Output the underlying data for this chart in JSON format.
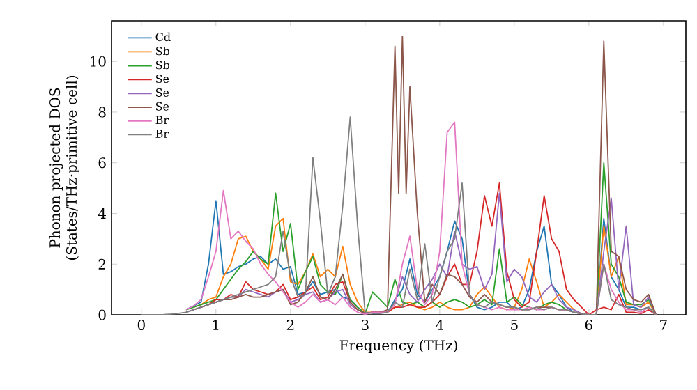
{
  "chart_data": {
    "type": "line",
    "xlabel": "Frequency (THz)",
    "ylabel": "Phonon projected DOS (States/THz·primitive cell)",
    "xlim": [
      -0.4,
      7.3
    ],
    "ylim": [
      0,
      11.6
    ],
    "xticks": [
      0,
      1,
      2,
      3,
      4,
      5,
      6,
      7
    ],
    "yticks": [
      0,
      2,
      4,
      6,
      8,
      10
    ],
    "legend": "top left",
    "x": [
      0,
      0.1,
      0.2,
      0.3,
      0.4,
      0.5,
      0.6,
      0.7,
      0.8,
      0.9,
      1.0,
      1.1,
      1.2,
      1.3,
      1.4,
      1.5,
      1.6,
      1.7,
      1.8,
      1.9,
      2.0,
      2.1,
      2.2,
      2.3,
      2.4,
      2.5,
      2.6,
      2.7,
      2.8,
      2.9,
      3.0,
      3.1,
      3.2,
      3.3,
      3.4,
      3.5,
      3.6,
      3.7,
      3.8,
      3.9,
      4.0,
      4.1,
      4.2,
      4.3,
      4.4,
      4.5,
      4.6,
      4.7,
      4.8,
      4.9,
      5.0,
      5.1,
      5.2,
      5.3,
      5.4,
      5.5,
      5.6,
      5.7,
      5.8,
      5.9,
      6.0,
      6.1,
      6.2,
      6.3,
      6.4,
      6.5,
      6.6,
      6.7,
      6.8,
      6.9
    ],
    "series": [
      {
        "name": "Cd",
        "color": "#1f77b4",
        "values": [
          null,
          null,
          null,
          null,
          null,
          null,
          0.2,
          0.35,
          0.5,
          2.0,
          4.5,
          1.6,
          1.7,
          1.9,
          2.0,
          2.2,
          2.3,
          2.0,
          2.2,
          1.8,
          1.9,
          0.8,
          0.9,
          1.3,
          0.8,
          0.9,
          1.0,
          0.7,
          0.6,
          0.3,
          0.05,
          0.1,
          0.1,
          0.1,
          0.6,
          1.0,
          2.2,
          0.8,
          0.5,
          1.0,
          1.5,
          2.5,
          3.7,
          3.0,
          0.8,
          0.3,
          0.2,
          0.3,
          0.5,
          0.5,
          0.2,
          0.3,
          1.0,
          2.5,
          3.5,
          1.2,
          0.8,
          0.3,
          0.1,
          0.05,
          0,
          0,
          3.8,
          1.5,
          1.0,
          0.3,
          0.3,
          0.2,
          0.3,
          0
        ]
      },
      {
        "name": "Sb",
        "color": "#ff7f0e",
        "values": [
          null,
          null,
          null,
          null,
          null,
          null,
          null,
          0.3,
          0.4,
          0.6,
          0.7,
          1.5,
          2.0,
          3.0,
          3.1,
          2.5,
          2.2,
          1.8,
          3.5,
          3.8,
          1.3,
          1.2,
          1.7,
          2.4,
          1.5,
          1.8,
          1.5,
          2.7,
          1.2,
          0.5,
          0.1,
          0.1,
          0.1,
          0.1,
          0.3,
          0.4,
          0.5,
          0.3,
          0.2,
          0.3,
          0.5,
          0.3,
          0.2,
          0.2,
          0.3,
          0.8,
          1.1,
          0.7,
          0.3,
          0.2,
          0.3,
          1.0,
          2.2,
          1.3,
          0.3,
          0.5,
          0.8,
          0.5,
          0.2,
          0.05,
          0,
          0,
          3.5,
          1.5,
          2.3,
          0.4,
          0.4,
          0.3,
          0.5,
          0
        ]
      },
      {
        "name": "Sb",
        "color": "#2ca02c",
        "values": [
          null,
          null,
          null,
          null,
          null,
          null,
          0.2,
          0.3,
          0.4,
          0.5,
          0.6,
          1.0,
          1.4,
          1.8,
          2.1,
          2.5,
          2.2,
          2.0,
          4.8,
          2.5,
          3.6,
          1.0,
          1.7,
          2.3,
          1.2,
          0.9,
          0.8,
          1.6,
          0.6,
          0.3,
          0.05,
          0.9,
          0.6,
          0.3,
          1.4,
          0.5,
          0.4,
          0.5,
          0.3,
          0.5,
          0.3,
          0.5,
          0.6,
          0.5,
          0.3,
          0.4,
          0.6,
          0.4,
          2.6,
          0.5,
          0.7,
          0.4,
          0.3,
          0.2,
          0.4,
          0.5,
          0.4,
          0.2,
          0.1,
          0.05,
          0,
          0,
          6.0,
          2.0,
          1.5,
          0.5,
          0.4,
          0.4,
          0.6,
          0
        ]
      },
      {
        "name": "Se",
        "color": "#d62728",
        "values": [
          null,
          null,
          null,
          null,
          null,
          null,
          null,
          null,
          0.3,
          0.4,
          0.6,
          0.6,
          0.8,
          0.7,
          1.3,
          1.0,
          0.9,
          0.8,
          0.9,
          1.2,
          0.6,
          0.7,
          0.9,
          1.1,
          0.6,
          0.7,
          1.2,
          1.3,
          0.5,
          0.2,
          0.05,
          0.1,
          0.1,
          0.1,
          0.3,
          0.3,
          0.4,
          0.3,
          0.3,
          0.5,
          0.8,
          1.5,
          2.0,
          1.2,
          1.2,
          2.5,
          4.7,
          3.5,
          5.2,
          1.7,
          0.6,
          0.3,
          0.5,
          2.5,
          4.7,
          3.0,
          2.5,
          1.0,
          0.6,
          0.3,
          0,
          0.2,
          0.3,
          0.2,
          0.8,
          0.1,
          0.1,
          0.05,
          0.2,
          0
        ]
      },
      {
        "name": "Se",
        "color": "#9467bd",
        "values": [
          null,
          null,
          null,
          null,
          null,
          null,
          0.1,
          0.2,
          0.3,
          0.4,
          0.5,
          0.6,
          0.7,
          0.7,
          1.0,
          0.9,
          0.8,
          0.7,
          0.9,
          1.0,
          0.5,
          0.6,
          0.8,
          0.9,
          0.5,
          0.6,
          0.9,
          1.0,
          0.4,
          0.2,
          0.05,
          0.1,
          0.1,
          0.1,
          0.5,
          1.5,
          0.8,
          0.5,
          1.0,
          1.4,
          2.0,
          1.5,
          3.3,
          2.0,
          1.8,
          1.9,
          1.0,
          1.6,
          4.8,
          1.3,
          1.8,
          1.5,
          0.7,
          0.5,
          0.9,
          1.2,
          0.6,
          0.3,
          0.2,
          0.05,
          0,
          0,
          2.5,
          4.6,
          1.0,
          3.5,
          0.4,
          0.3,
          0.7,
          0
        ]
      },
      {
        "name": "Se",
        "color": "#8c564b",
        "x": [
          0.6,
          0.7,
          0.8,
          0.9,
          1.0,
          1.1,
          1.2,
          1.3,
          1.4,
          1.5,
          1.6,
          1.7,
          1.8,
          1.9,
          2.0,
          2.1,
          2.2,
          2.3,
          2.4,
          2.5,
          2.6,
          2.7,
          2.8,
          2.9,
          3.0,
          3.1,
          3.2,
          3.3,
          3.4,
          3.45,
          3.5,
          3.55,
          3.6,
          3.7,
          3.8,
          3.9,
          4.0,
          4.1,
          4.2,
          4.3,
          4.4,
          4.5,
          4.6,
          4.7,
          4.8,
          4.9,
          5.0,
          5.1,
          5.2,
          5.3,
          5.4,
          5.5,
          5.6,
          5.7,
          5.8,
          5.9,
          6.0,
          6.1,
          6.2,
          6.3,
          6.4,
          6.5,
          6.6,
          6.7,
          6.8,
          6.9
        ],
        "values": [
          0.1,
          0.2,
          0.3,
          0.4,
          0.5,
          0.6,
          0.6,
          0.7,
          0.8,
          0.7,
          0.7,
          0.8,
          0.9,
          1.0,
          0.4,
          0.5,
          0.9,
          1.5,
          0.7,
          0.6,
          1.0,
          1.6,
          0.5,
          0.2,
          0.05,
          0.1,
          0.1,
          0.2,
          10.6,
          4.8,
          11.0,
          4.8,
          9.0,
          4.0,
          0.5,
          1.2,
          0.8,
          1.6,
          1.5,
          1.2,
          0.7,
          0.5,
          0.8,
          0.5,
          0.4,
          0.3,
          0.3,
          0.2,
          0.2,
          0.3,
          0.3,
          0.3,
          0.2,
          0.2,
          0.1,
          0.05,
          0,
          0,
          10.8,
          2.5,
          2.3,
          1.0,
          0.6,
          0.5,
          0.8,
          0
        ]
      },
      {
        "name": "Br",
        "color": "#e377c2",
        "values": [
          null,
          null,
          null,
          null,
          null,
          null,
          0.2,
          0.35,
          0.6,
          1.5,
          2.5,
          4.9,
          3.0,
          3.3,
          2.9,
          2.6,
          2.0,
          1.6,
          1.3,
          0.9,
          0.5,
          0.3,
          0.5,
          0.8,
          0.5,
          0.6,
          0.4,
          0.7,
          0.3,
          0.1,
          0.02,
          0.1,
          0.1,
          0.1,
          0.4,
          2.0,
          3.1,
          1.0,
          0.4,
          0.8,
          2.5,
          7.2,
          7.6,
          2.0,
          0.8,
          0.4,
          0.3,
          0.2,
          0.3,
          0.2,
          0.2,
          0.2,
          0.3,
          0.2,
          0.2,
          0.3,
          0.2,
          0.2,
          0.1,
          0.05,
          0,
          0,
          2.0,
          1.0,
          0.5,
          0.2,
          0.2,
          0.1,
          0.3,
          0
        ]
      },
      {
        "name": "Br",
        "color": "#7f7f7f",
        "values": [
          0,
          0,
          0,
          0.01,
          0.03,
          0.06,
          0.1,
          0.2,
          0.3,
          0.4,
          0.5,
          0.6,
          0.7,
          0.8,
          0.9,
          1.0,
          1.1,
          1.2,
          1.5,
          3.3,
          1.5,
          0.7,
          0.8,
          6.2,
          3.7,
          0.8,
          1.5,
          4.3,
          7.8,
          3.5,
          0.1,
          0.05,
          0.05,
          0.1,
          0.5,
          0.3,
          1.8,
          0.6,
          2.8,
          0.5,
          1.5,
          2.5,
          3.0,
          5.2,
          0.8,
          0.4,
          0.3,
          0.5,
          0.4,
          0.3,
          0.3,
          0.2,
          0.2,
          0.3,
          0.2,
          0.3,
          0.2,
          0.2,
          0.1,
          0.05,
          0,
          0,
          2.0,
          0.6,
          0.4,
          0.3,
          0.2,
          0.2,
          0.3,
          0
        ]
      }
    ]
  }
}
